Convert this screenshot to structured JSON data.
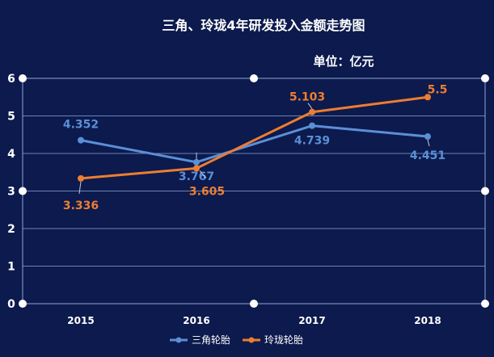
{
  "chart_data": {
    "type": "line",
    "title": "三角、玲珑4年研发投入金额走势图",
    "unit_label": "单位：亿元",
    "categories": [
      "2015",
      "2016",
      "2017",
      "2018"
    ],
    "ylim": [
      0,
      6
    ],
    "yticks": [
      "0",
      "1",
      "2",
      "3",
      "4",
      "5",
      "6"
    ],
    "grid": true,
    "legend_position": "bottom",
    "series": [
      {
        "name": "三角轮胎",
        "values": [
          4.352,
          3.767,
          4.739,
          4.451
        ],
        "labels": [
          "4.352",
          "3.767",
          "4.739",
          "4.451"
        ],
        "color": "#5b8fd6"
      },
      {
        "name": "玲珑轮胎",
        "values": [
          3.336,
          3.605,
          5.103,
          5.5
        ],
        "labels": [
          "3.336",
          "3.605",
          "5.103",
          "5.5"
        ],
        "color": "#ee7d31"
      }
    ]
  },
  "colors": {
    "background": "#0c1a4d",
    "grid": "#8fa6d6",
    "axis": "#ffffff"
  }
}
